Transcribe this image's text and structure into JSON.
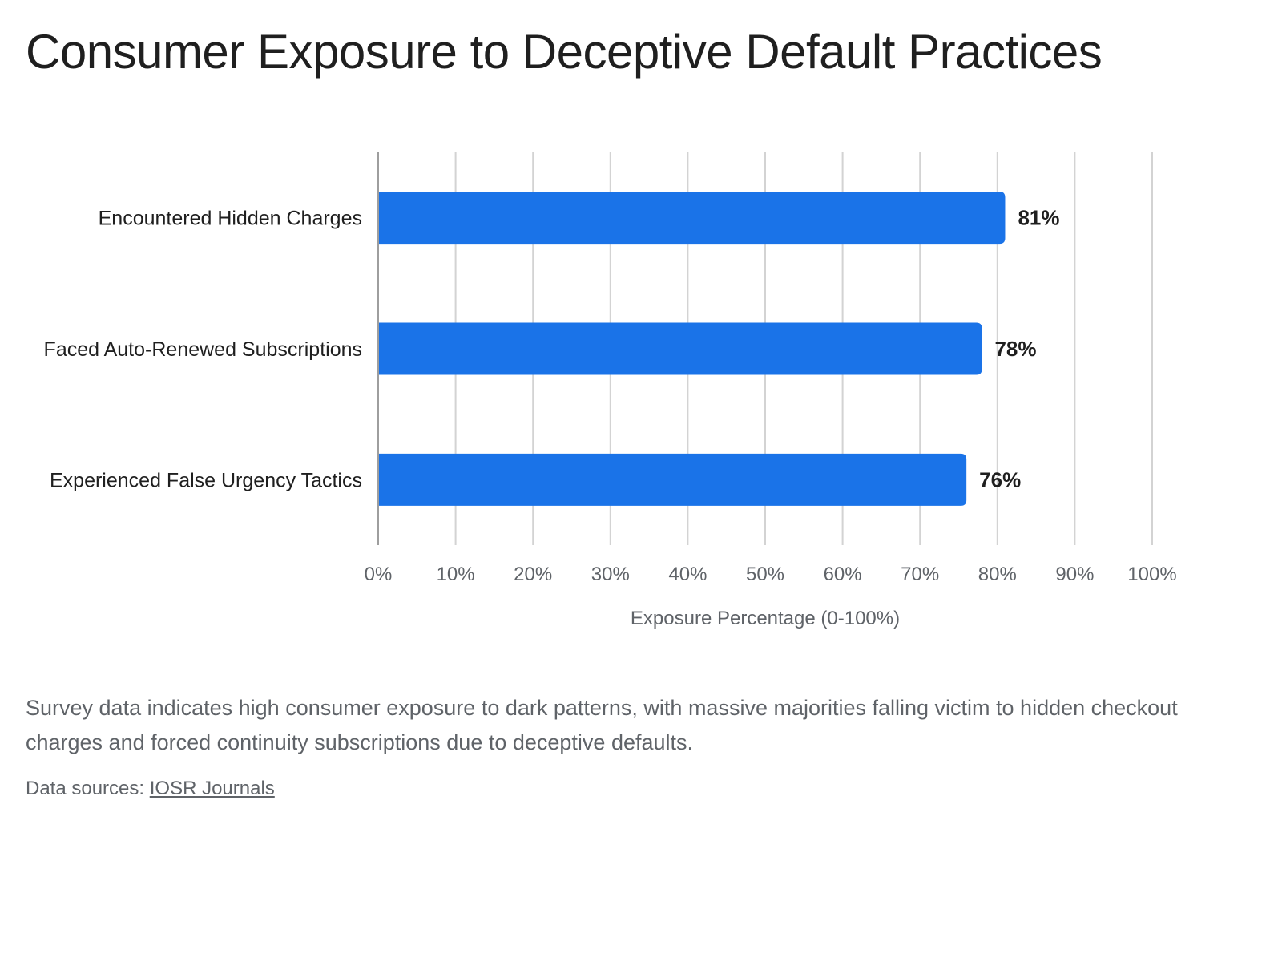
{
  "page": {
    "title": "Consumer Exposure to Deceptive Default Practices",
    "description": "Survey data indicates high consumer exposure to dark patterns, with massive majorities falling victim to hidden checkout charges and forced continuity subscriptions due to deceptive defaults.",
    "sources_label": "Data sources: ",
    "sources_link": "IOSR Journals"
  },
  "chart_data": {
    "type": "bar",
    "orientation": "horizontal",
    "categories": [
      "Encountered Hidden Charges",
      "Faced Auto-Renewed Subscriptions",
      "Experienced False Urgency Tactics"
    ],
    "values": [
      81,
      78,
      76
    ],
    "value_labels": [
      "81%",
      "78%",
      "76%"
    ],
    "xlabel": "Exposure Percentage (0-100%)",
    "ylabel": "",
    "xlim": [
      0,
      100
    ],
    "x_ticks": [
      0,
      10,
      20,
      30,
      40,
      50,
      60,
      70,
      80,
      90,
      100
    ],
    "x_tick_labels": [
      "0%",
      "10%",
      "20%",
      "30%",
      "40%",
      "50%",
      "60%",
      "70%",
      "80%",
      "90%",
      "100%"
    ],
    "grid": true,
    "bar_color": "#1a73e8"
  }
}
